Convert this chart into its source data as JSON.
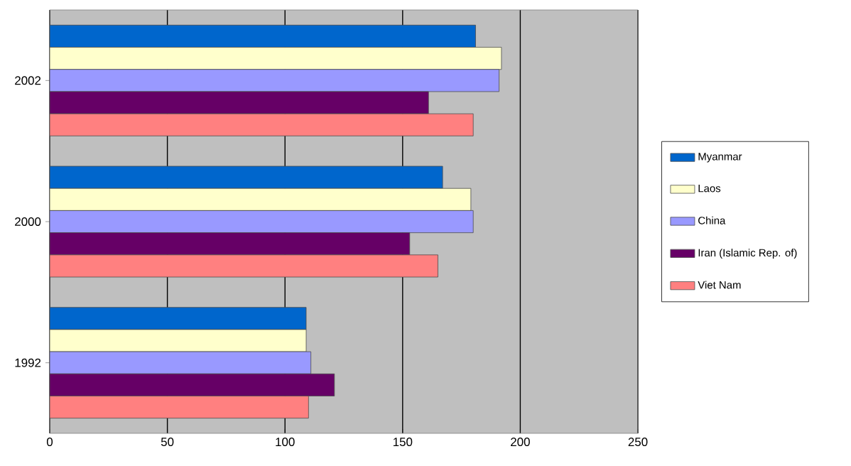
{
  "chart_data": {
    "type": "bar",
    "orientation": "horizontal",
    "categories": [
      "2002",
      "2000",
      "1992"
    ],
    "series": [
      {
        "name": "Myanmar",
        "color": "#0066cc",
        "values": [
          181,
          167,
          109
        ]
      },
      {
        "name": "Laos",
        "color": "#ffffcc",
        "values": [
          192,
          179,
          109
        ]
      },
      {
        "name": "China",
        "color": "#9999ff",
        "values": [
          191,
          180,
          111
        ]
      },
      {
        "name": "Iran (Islamic Rep. of)",
        "color": "#660066",
        "values": [
          161,
          153,
          121
        ]
      },
      {
        "name": "Viet Nam",
        "color": "#ff8080",
        "values": [
          180,
          165,
          110
        ]
      }
    ],
    "xlim": [
      0,
      250
    ],
    "xticks": [
      0,
      50,
      100,
      150,
      200,
      250
    ],
    "grid": "x",
    "legend": "right"
  }
}
